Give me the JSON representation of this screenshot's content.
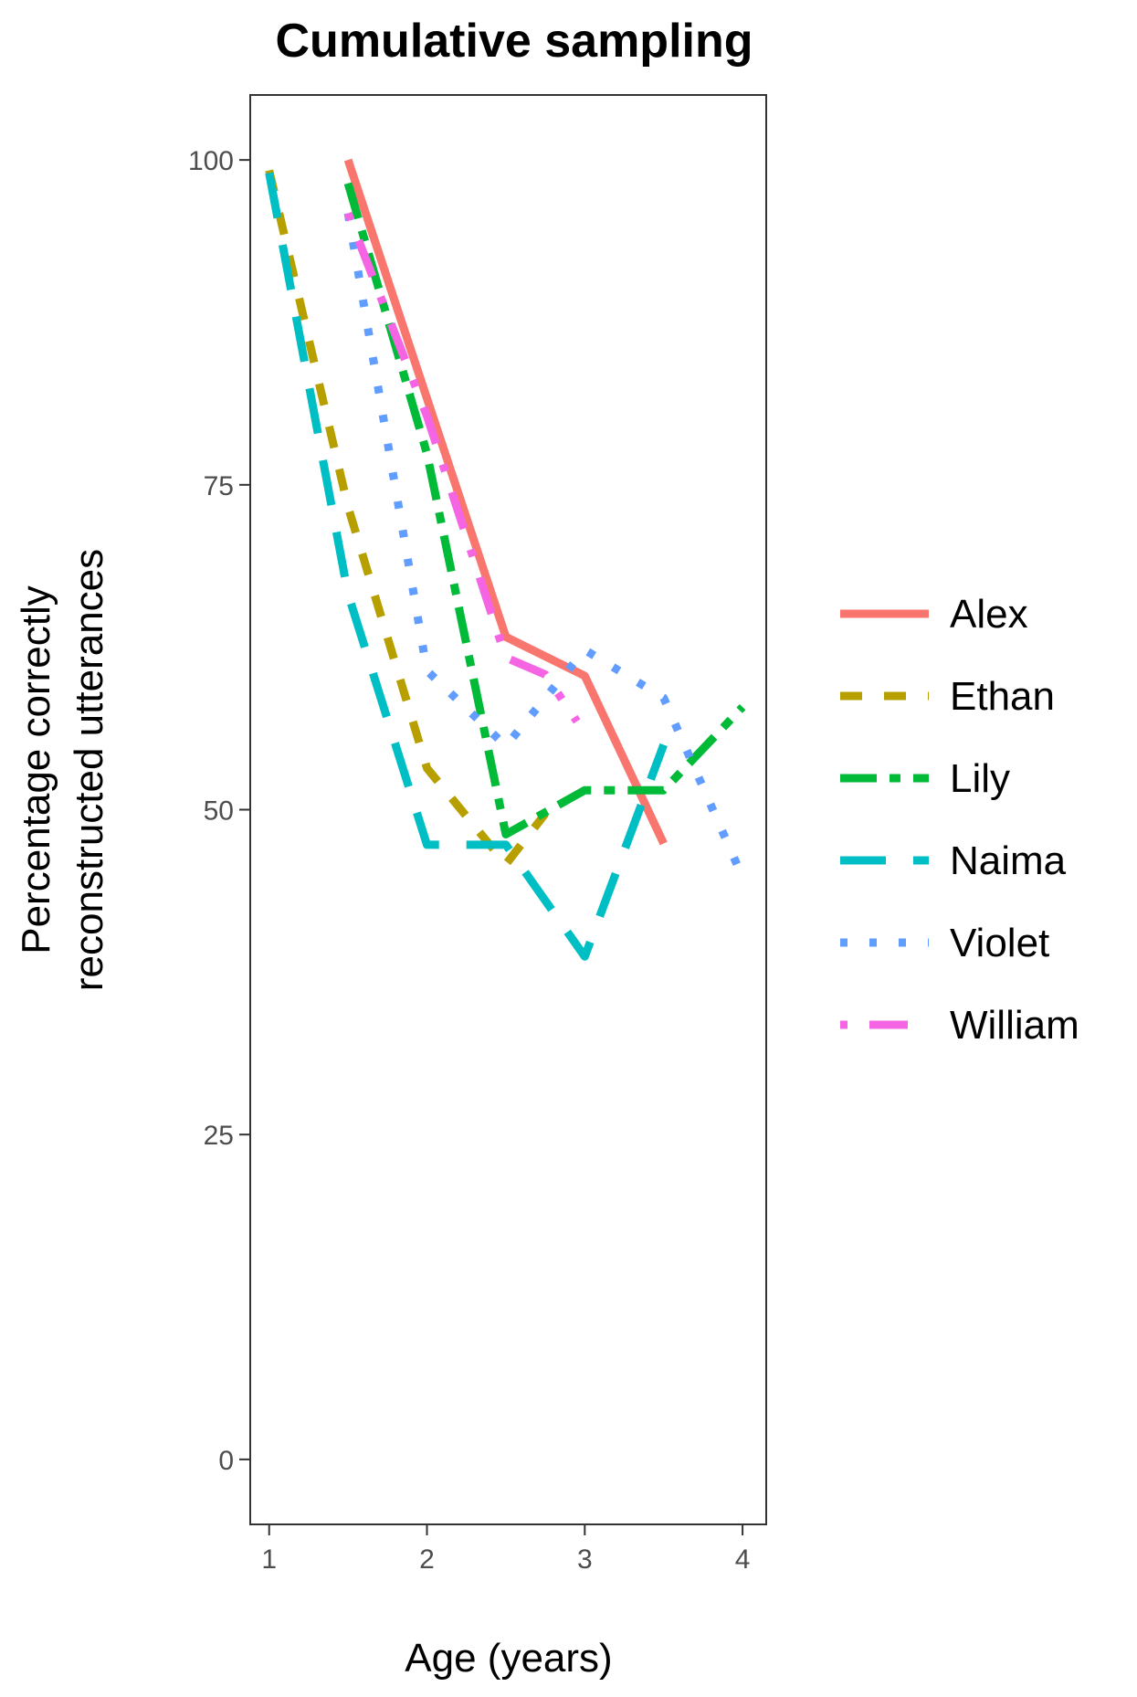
{
  "chart_data": {
    "type": "line",
    "title": "Cumulative sampling",
    "xlabel": "Age (years)",
    "ylabel_lines": [
      "Percentage correctly",
      "reconstructed utterances"
    ],
    "xlim": [
      0.88,
      4.15
    ],
    "ylim": [
      -5,
      105
    ],
    "x_ticks": [
      1,
      2,
      3,
      4
    ],
    "x_tick_labels": [
      "1",
      "2",
      "3",
      "4"
    ],
    "y_ticks": [
      0,
      25,
      50,
      75,
      100
    ],
    "y_tick_labels": [
      "0",
      "25",
      "50",
      "75",
      "100"
    ],
    "grid": false,
    "legend_position": "right",
    "series": [
      {
        "name": "Alex",
        "color": "#F8766D",
        "dash": "solid",
        "x": [
          1.5,
          2.5,
          3.0,
          3.5
        ],
        "y": [
          100,
          63.3,
          60.3,
          47.4
        ]
      },
      {
        "name": "Ethan",
        "color": "#B79F00",
        "dash": "dashed",
        "x": [
          1.0,
          1.5,
          2.0,
          2.5,
          2.75
        ],
        "y": [
          99.2,
          73.3,
          53.2,
          45.8,
          49.7
        ]
      },
      {
        "name": "Lily",
        "color": "#00BA38",
        "dash": "longdash",
        "x": [
          1.5,
          2.0,
          2.5,
          3.0,
          3.5,
          4.0
        ],
        "y": [
          98.2,
          77.4,
          48.1,
          51.5,
          51.5,
          57.9
        ]
      },
      {
        "name": "Naima",
        "color": "#00BFC4",
        "dash": "longerdash",
        "x": [
          1.0,
          1.5,
          2.0,
          2.5,
          3.0,
          3.5
        ],
        "y": [
          99.0,
          66.6,
          47.3,
          47.3,
          38.7,
          55.0
        ]
      },
      {
        "name": "Violet",
        "color": "#619CFF",
        "dash": "dotted",
        "x": [
          1.5,
          2.0,
          2.5,
          3.0,
          3.5,
          4.0
        ],
        "y": [
          95.9,
          60.7,
          54.9,
          62.3,
          58.6,
          44.8
        ]
      },
      {
        "name": "William",
        "color": "#F564E3",
        "dash": "dotdash",
        "x": [
          1.5,
          2.0,
          2.5,
          2.75,
          2.95
        ],
        "y": [
          95.9,
          80.3,
          61.7,
          60.4,
          56.8
        ]
      }
    ]
  }
}
